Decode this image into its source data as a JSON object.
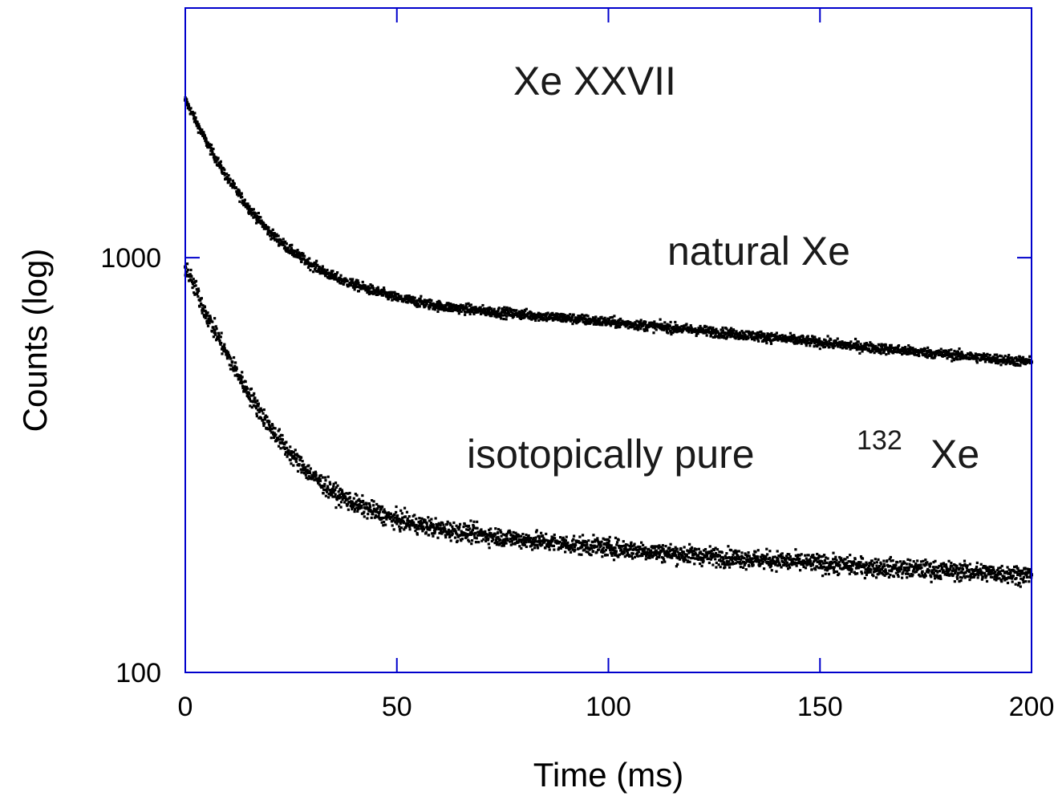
{
  "chart_data": {
    "type": "scatter",
    "title": "Xe XXVII",
    "xlabel": "Time (ms)",
    "ylabel": "Counts (log)",
    "xlim": [
      0,
      200
    ],
    "ylim": [
      100,
      4000
    ],
    "yscale": "log",
    "x_ticks": [
      0,
      50,
      100,
      150,
      200
    ],
    "x_tick_labels": [
      "0",
      "50",
      "100",
      "150",
      "200"
    ],
    "y_ticks": [
      100,
      1000
    ],
    "y_tick_labels": [
      "100",
      "1000"
    ],
    "grid": false,
    "series": [
      {
        "name": "natural Xe",
        "color": "#000000",
        "x": [
          0,
          5,
          10,
          15,
          20,
          25,
          30,
          35,
          40,
          50,
          60,
          70,
          80,
          90,
          100,
          110,
          120,
          130,
          140,
          150,
          160,
          170,
          180,
          190,
          200
        ],
        "y": [
          2400,
          1900,
          1550,
          1320,
          1150,
          1040,
          960,
          900,
          860,
          800,
          765,
          745,
          730,
          715,
          700,
          685,
          670,
          655,
          640,
          625,
          610,
          597,
          585,
          572,
          560
        ]
      },
      {
        "name": "isotopically pure 132Xe",
        "color": "#000000",
        "x": [
          0,
          5,
          10,
          15,
          20,
          25,
          30,
          35,
          40,
          50,
          60,
          70,
          80,
          90,
          100,
          110,
          120,
          130,
          140,
          150,
          160,
          170,
          180,
          190,
          200
        ],
        "y": [
          950,
          730,
          580,
          470,
          390,
          335,
          298,
          272,
          255,
          233,
          222,
          215,
          209,
          204,
          200,
          196,
          192,
          189,
          186,
          183,
          180,
          178,
          176,
          174,
          172
        ]
      }
    ],
    "annotations": {
      "title_text": "Xe XXVII",
      "natural": "natural Xe",
      "pure_prefix": "isotopically pure",
      "pure_sup": "132",
      "pure_suffix": "Xe"
    },
    "frame_color": "#0000cc"
  }
}
